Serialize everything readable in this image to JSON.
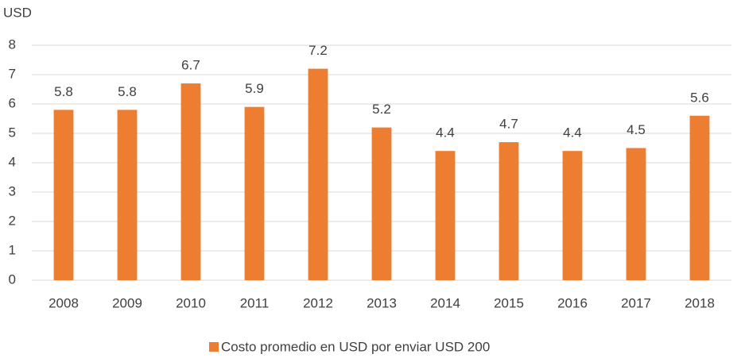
{
  "chart_data": {
    "type": "bar",
    "ylabel": "USD",
    "categories": [
      "2008",
      "2009",
      "2010",
      "2011",
      "2012",
      "2013",
      "2014",
      "2015",
      "2016",
      "2017",
      "2018"
    ],
    "series": [
      {
        "name": "Costo promedio en USD por enviar USD 200",
        "color": "#ed7d31",
        "values": [
          5.8,
          5.8,
          6.7,
          5.9,
          7.2,
          5.2,
          4.4,
          4.7,
          4.4,
          4.5,
          5.6
        ]
      }
    ],
    "ylim": [
      0,
      8
    ],
    "yticks": [
      0,
      1,
      2,
      3,
      4,
      5,
      6,
      7,
      8
    ],
    "grid": true,
    "legend": "bottom",
    "data_labels": true
  }
}
